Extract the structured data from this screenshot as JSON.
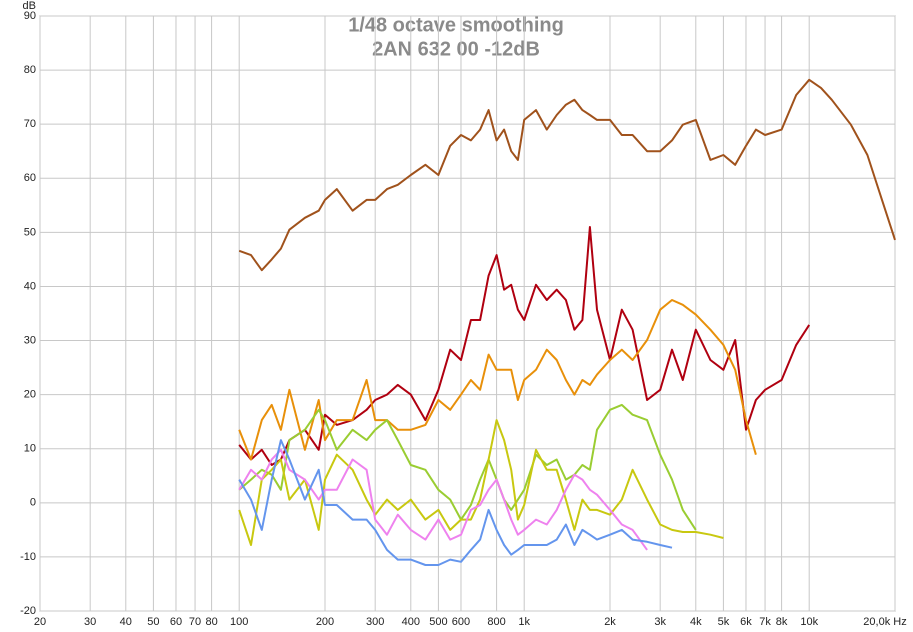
{
  "chart_data": {
    "type": "line",
    "title": "1/48 octave smoothing",
    "subtitle": "2AN 632 00 -12dB",
    "y_label": "dB",
    "xscale": "log",
    "grid": true,
    "xlim": [
      20,
      20000
    ],
    "ylim": [
      -20,
      90
    ],
    "yticks": [
      -20,
      -10,
      0,
      10,
      20,
      30,
      40,
      50,
      60,
      70,
      80,
      90
    ],
    "xticks": [
      20,
      30,
      40,
      50,
      60,
      70,
      80,
      100,
      200,
      300,
      400,
      500,
      600,
      800,
      {
        "value": 1000,
        "label": "1k"
      },
      {
        "value": 2000,
        "label": "2k"
      },
      {
        "value": 3000,
        "label": "3k"
      },
      {
        "value": 4000,
        "label": "4k"
      },
      {
        "value": 5000,
        "label": "5k"
      },
      {
        "value": 6000,
        "label": "6k"
      },
      {
        "value": 7000,
        "label": "7k"
      },
      {
        "value": 8000,
        "label": "8k"
      },
      {
        "value": 10000,
        "label": "10k"
      },
      {
        "value": 20000,
        "label": "20,0k Hz"
      }
    ],
    "x": [
      100,
      110,
      120,
      130,
      140,
      150,
      170,
      190,
      200,
      220,
      250,
      280,
      300,
      330,
      360,
      400,
      450,
      500,
      550,
      600,
      650,
      700,
      750,
      800,
      850,
      900,
      950,
      1000,
      1100,
      1200,
      1300,
      1400,
      1500,
      1600,
      1700,
      1800,
      2000,
      2200,
      2400,
      2700,
      3000,
      3300,
      3600,
      4000,
      4500,
      5000,
      5500,
      6000,
      6500,
      7000,
      8000,
      9000,
      10000,
      11000,
      12000,
      14000,
      16000,
      18000,
      20000
    ],
    "series": [
      {
        "color": "#a0521c",
        "values": [
          46.6,
          45.8,
          43,
          45,
          47,
          50.5,
          52.7,
          54,
          56,
          58,
          54,
          56,
          56,
          58,
          58.8,
          60.6,
          62.5,
          60.6,
          66,
          68,
          67,
          69,
          72.6,
          67,
          69,
          65,
          63.4,
          70.8,
          72.6,
          69,
          71.7,
          73.6,
          74.5,
          72.6,
          71.7,
          70.8,
          70.8,
          68,
          68,
          65,
          65,
          67,
          69.9,
          70.8,
          63.4,
          64.3,
          62.5,
          66,
          69,
          68,
          69,
          75.4,
          78.2,
          76.7,
          74.5,
          69.9,
          64.3,
          56,
          48.6
        ]
      },
      {
        "color": "#b00010",
        "values": [
          10.7,
          8,
          9.8,
          7,
          8,
          11.6,
          13.5,
          9.8,
          16.3,
          14.4,
          15.3,
          17.2,
          19,
          20,
          21.8,
          20,
          15.3,
          20.9,
          28.3,
          26.4,
          33.8,
          33.8,
          42,
          45.8,
          39.4,
          40.3,
          35.7,
          33.8,
          40.3,
          37.5,
          39.4,
          37.5,
          32,
          33.8,
          51,
          35.7,
          26.4,
          35.7,
          32,
          19,
          20.9,
          28.3,
          22.7,
          32,
          26.4,
          24.6,
          30.1,
          13.5,
          19,
          20.9,
          22.7,
          29.2,
          32.9,
          null,
          null,
          null,
          null,
          null,
          null
        ]
      },
      {
        "color": "#e8900a",
        "values": [
          13.5,
          8,
          15.3,
          18.1,
          13.5,
          20.9,
          9.8,
          19,
          11.6,
          15.3,
          15.3,
          22.7,
          15.3,
          15.3,
          13.5,
          13.5,
          14.4,
          19,
          17.2,
          20,
          22.7,
          20.9,
          27.4,
          24.6,
          24.6,
          24.6,
          19,
          22.7,
          24.6,
          28.3,
          26.4,
          22.7,
          20,
          22.7,
          21.8,
          23.7,
          26.4,
          28.3,
          26.4,
          30.1,
          35.7,
          37.5,
          36.6,
          34.8,
          32,
          29.2,
          24.6,
          15.3,
          8.9,
          null,
          null,
          null,
          null,
          null,
          null,
          null,
          null,
          null,
          null
        ]
      },
      {
        "color": "#9acd32",
        "values": [
          2.4,
          4.3,
          6.1,
          5.2,
          2.4,
          11.6,
          13.5,
          17.2,
          15.3,
          9.8,
          13.5,
          11.6,
          13.5,
          15.3,
          11.6,
          7,
          6.1,
          2.4,
          0.6,
          -3.1,
          -0.4,
          4.3,
          8,
          4.3,
          0.6,
          -1.3,
          0.6,
          2.4,
          8.9,
          7,
          8,
          4.3,
          5.2,
          7,
          6.1,
          13.5,
          17.2,
          18.1,
          16.3,
          15.3,
          8.9,
          4.3,
          -1.3,
          -5,
          null,
          null,
          null,
          null,
          null,
          null,
          null,
          null,
          null,
          null,
          null,
          null,
          null,
          null,
          null
        ]
      },
      {
        "color": "#c8c810",
        "values": [
          -1.3,
          -7.8,
          4.3,
          6.1,
          8,
          0.6,
          4.3,
          -5,
          4.3,
          8.9,
          6.1,
          0.6,
          -2.2,
          0.6,
          -1.3,
          0.6,
          -3.1,
          -1.3,
          -5,
          -3.1,
          -3.1,
          0.6,
          8,
          15.3,
          11.6,
          6.1,
          -3.1,
          -0.4,
          9.8,
          6.1,
          6.1,
          0.6,
          -5,
          0.6,
          -1.3,
          -1.3,
          -2.2,
          0.6,
          6.1,
          0.6,
          -4,
          -5,
          -5.4,
          -5.4,
          -5.9,
          -6.5,
          null,
          null,
          null,
          null,
          null,
          null,
          null,
          null,
          null,
          null,
          null,
          null,
          null
        ]
      },
      {
        "color": "#ee82ee",
        "values": [
          2.4,
          6.1,
          4.3,
          8,
          9.8,
          6.1,
          4.3,
          0.6,
          2.4,
          2.4,
          8,
          6.1,
          -3.1,
          -5.9,
          -2.2,
          -5,
          -6.8,
          -3.1,
          -6.8,
          -5.9,
          -1.3,
          -0.4,
          2.4,
          4.3,
          0.6,
          -3.1,
          -5.9,
          -5,
          -3.1,
          -4,
          -1.3,
          2.4,
          5.2,
          4.3,
          2.4,
          1.5,
          -1.3,
          -4,
          -5,
          -8.7,
          null,
          null,
          null,
          null,
          null,
          null,
          null,
          null,
          null,
          null,
          null,
          null,
          null,
          null,
          null,
          null,
          null,
          null,
          null
        ]
      },
      {
        "color": "#6495ed",
        "values": [
          4.3,
          0.6,
          -5,
          4.3,
          11.6,
          8,
          0.6,
          6.1,
          -0.4,
          -0.4,
          -3.1,
          -3.1,
          -5,
          -8.7,
          -10.5,
          -10.5,
          -11.5,
          -11.5,
          -10.5,
          -10.9,
          -8.7,
          -6.8,
          -1.3,
          -5,
          -7.8,
          -9.6,
          -8.7,
          -7.8,
          -7.8,
          -7.8,
          -6.8,
          -4,
          -7.8,
          -5,
          -5.9,
          -6.8,
          -5.9,
          -5,
          -6.8,
          -7.2,
          -7.8,
          -8.3,
          null,
          null,
          null,
          null,
          null,
          null,
          null,
          null,
          null,
          null,
          null,
          null,
          null,
          null,
          null,
          null,
          null
        ]
      }
    ]
  }
}
